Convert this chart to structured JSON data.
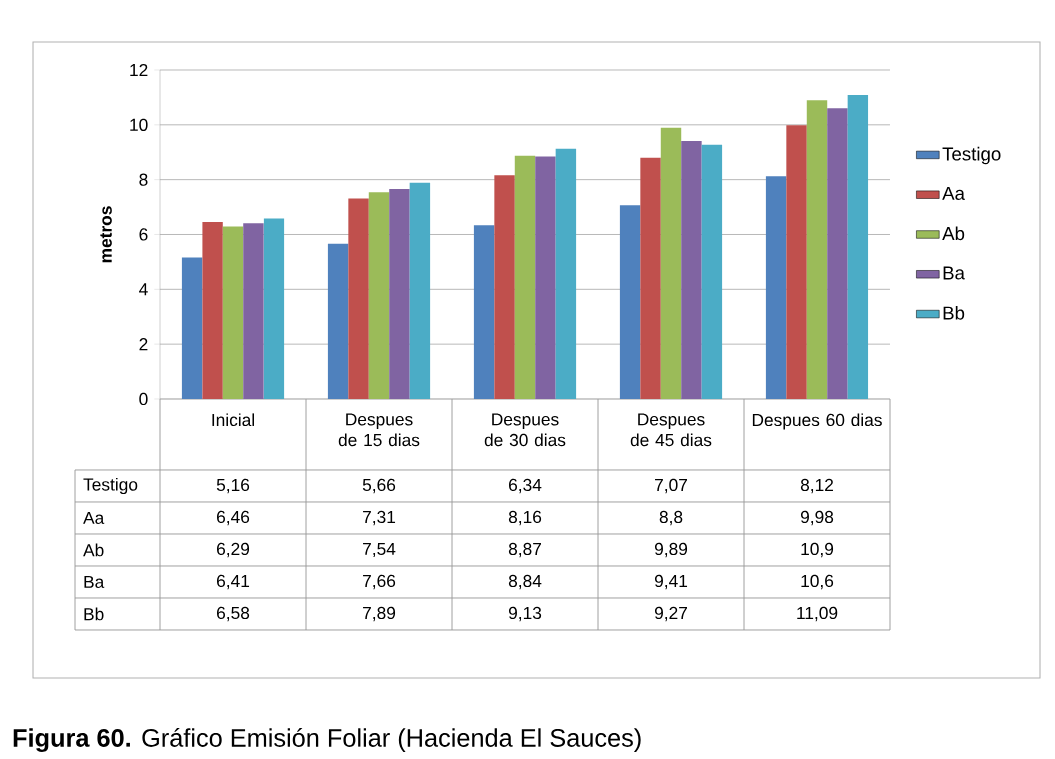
{
  "chart_data": {
    "type": "bar",
    "title": "**Figura 60.** Gráfico Emisión Foliar (Hacienda El Sauces)",
    "ylabel": "metros",
    "categories": [
      "Inicial",
      "Despues de 15 dias",
      "Despues de 30 dias",
      "Despues de 45 dias",
      "Despues 60 dias"
    ],
    "series": [
      {
        "name": "Testigo",
        "color": "#4f81bd",
        "values": [
          5.16,
          5.66,
          6.34,
          7.07,
          8.12
        ],
        "value_labels": [
          "5,16",
          "5,66",
          "6,34",
          "7,07",
          "8,12"
        ]
      },
      {
        "name": "Aa",
        "color": "#c0504d",
        "values": [
          6.46,
          7.31,
          8.16,
          8.8,
          9.98
        ],
        "value_labels": [
          "6,46",
          "7,31",
          "8,16",
          "8,8",
          "9,98"
        ]
      },
      {
        "name": "Ab",
        "color": "#9bbb59",
        "values": [
          6.29,
          7.54,
          8.87,
          9.89,
          10.9
        ],
        "value_labels": [
          "6,29",
          "7,54",
          "8,87",
          "9,89",
          "10,9"
        ]
      },
      {
        "name": "Ba",
        "color": "#8064a2",
        "values": [
          6.41,
          7.66,
          8.84,
          9.41,
          10.6
        ],
        "value_labels": [
          "6,41",
          "7,66",
          "8,84",
          "9,41",
          "10,6"
        ]
      },
      {
        "name": "Bb",
        "color": "#4bacc6",
        "values": [
          6.58,
          7.89,
          9.13,
          9.27,
          11.09
        ],
        "value_labels": [
          "6,58",
          "7,89",
          "9,13",
          "9,27",
          "11,09"
        ]
      }
    ],
    "ylim": [
      0,
      12
    ],
    "yticks": [
      0,
      2,
      4,
      6,
      8,
      10,
      12
    ],
    "grid": "y",
    "legend": "right"
  }
}
